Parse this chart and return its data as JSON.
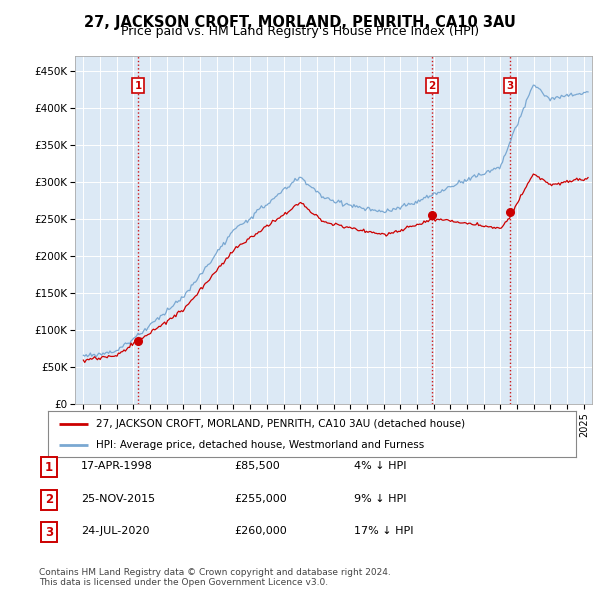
{
  "title": "27, JACKSON CROFT, MORLAND, PENRITH, CA10 3AU",
  "subtitle": "Price paid vs. HM Land Registry's House Price Index (HPI)",
  "ylabel_ticks": [
    "£0",
    "£50K",
    "£100K",
    "£150K",
    "£200K",
    "£250K",
    "£300K",
    "£350K",
    "£400K",
    "£450K"
  ],
  "ytick_values": [
    0,
    50000,
    100000,
    150000,
    200000,
    250000,
    300000,
    350000,
    400000,
    450000
  ],
  "ylim": [
    0,
    470000
  ],
  "xlim_start": 1994.5,
  "xlim_end": 2025.5,
  "sale_dates": [
    1998.29,
    2015.9,
    2020.56
  ],
  "sale_prices": [
    85500,
    255000,
    260000
  ],
  "sale_labels": [
    "1",
    "2",
    "3"
  ],
  "vline_color": "#cc0000",
  "sale_marker_color": "#cc0000",
  "hpi_line_color": "#7aa8d2",
  "price_line_color": "#cc0000",
  "chart_bg": "#dce9f5",
  "legend_entries": [
    "27, JACKSON CROFT, MORLAND, PENRITH, CA10 3AU (detached house)",
    "HPI: Average price, detached house, Westmorland and Furness"
  ],
  "table_rows": [
    [
      "1",
      "17-APR-1998",
      "£85,500",
      "4% ↓ HPI"
    ],
    [
      "2",
      "25-NOV-2015",
      "£255,000",
      "9% ↓ HPI"
    ],
    [
      "3",
      "24-JUL-2020",
      "£260,000",
      "17% ↓ HPI"
    ]
  ],
  "footnote": "Contains HM Land Registry data © Crown copyright and database right 2024.\nThis data is licensed under the Open Government Licence v3.0.",
  "bg_color": "#ffffff",
  "grid_color": "#ffffff",
  "title_fontsize": 10.5,
  "subtitle_fontsize": 9.0,
  "tick_fontsize": 7.5
}
